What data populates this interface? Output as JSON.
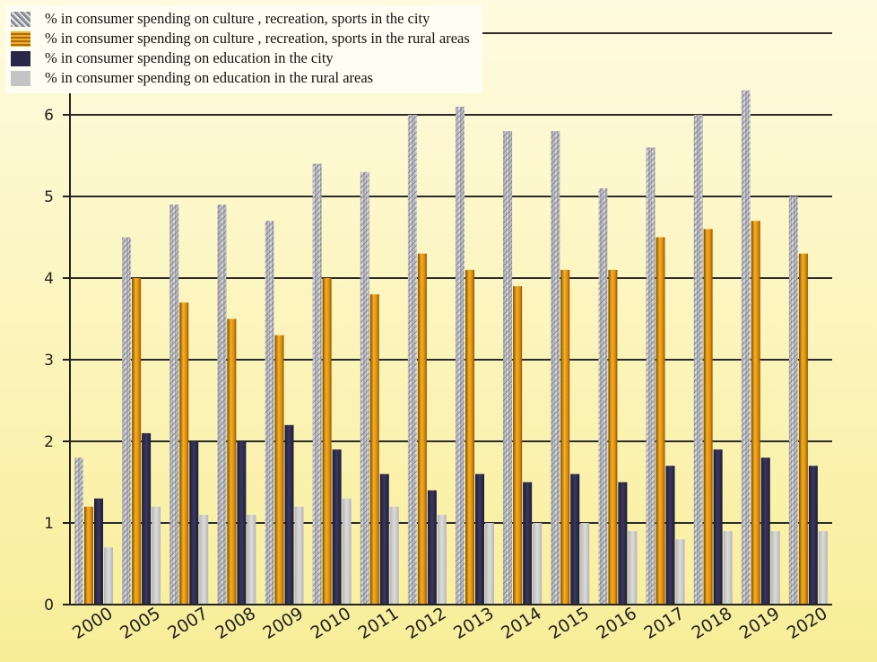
{
  "chart_data": {
    "type": "bar",
    "categories": [
      "2000",
      "2005",
      "2007",
      "2008",
      "2009",
      "2010",
      "2011",
      "2012",
      "2013",
      "2014",
      "2015",
      "2016",
      "2017",
      "2018",
      "2019",
      "2020"
    ],
    "series": [
      {
        "name": "% in consumer spending on culture , recreation, sports in the city",
        "values": [
          1.8,
          4.5,
          4.9,
          4.9,
          4.7,
          5.4,
          5.3,
          6.0,
          6.1,
          5.8,
          5.8,
          5.1,
          5.6,
          6.0,
          6.3,
          5.0
        ],
        "color": "#b8b8c0"
      },
      {
        "name": "% in consumer spending on culture , recreation, sports in the rural areas",
        "values": [
          1.2,
          4.0,
          3.7,
          3.5,
          3.3,
          4.0,
          3.8,
          4.3,
          4.1,
          3.9,
          4.1,
          4.1,
          4.5,
          4.6,
          4.7,
          4.3
        ],
        "color": "#e69a10"
      },
      {
        "name": "% in consumer spending on education in the city",
        "values": [
          1.3,
          2.1,
          2.0,
          2.0,
          2.2,
          1.9,
          1.6,
          1.4,
          1.6,
          1.5,
          1.6,
          1.5,
          1.7,
          1.9,
          1.8,
          1.7
        ],
        "color": "#2a2848"
      },
      {
        "name": "% in consumer spending on education in the rural areas",
        "values": [
          0.7,
          1.2,
          1.1,
          1.1,
          1.2,
          1.3,
          1.2,
          1.1,
          1.0,
          1.0,
          1.0,
          0.9,
          0.8,
          0.9,
          0.9,
          0.9
        ],
        "color": "#c4c4c4"
      }
    ],
    "yticks": [
      "0",
      "1",
      "2",
      "3",
      "4",
      "5",
      "6"
    ],
    "ylim": [
      0,
      7
    ],
    "grid": true,
    "legend_position": "top-left"
  }
}
